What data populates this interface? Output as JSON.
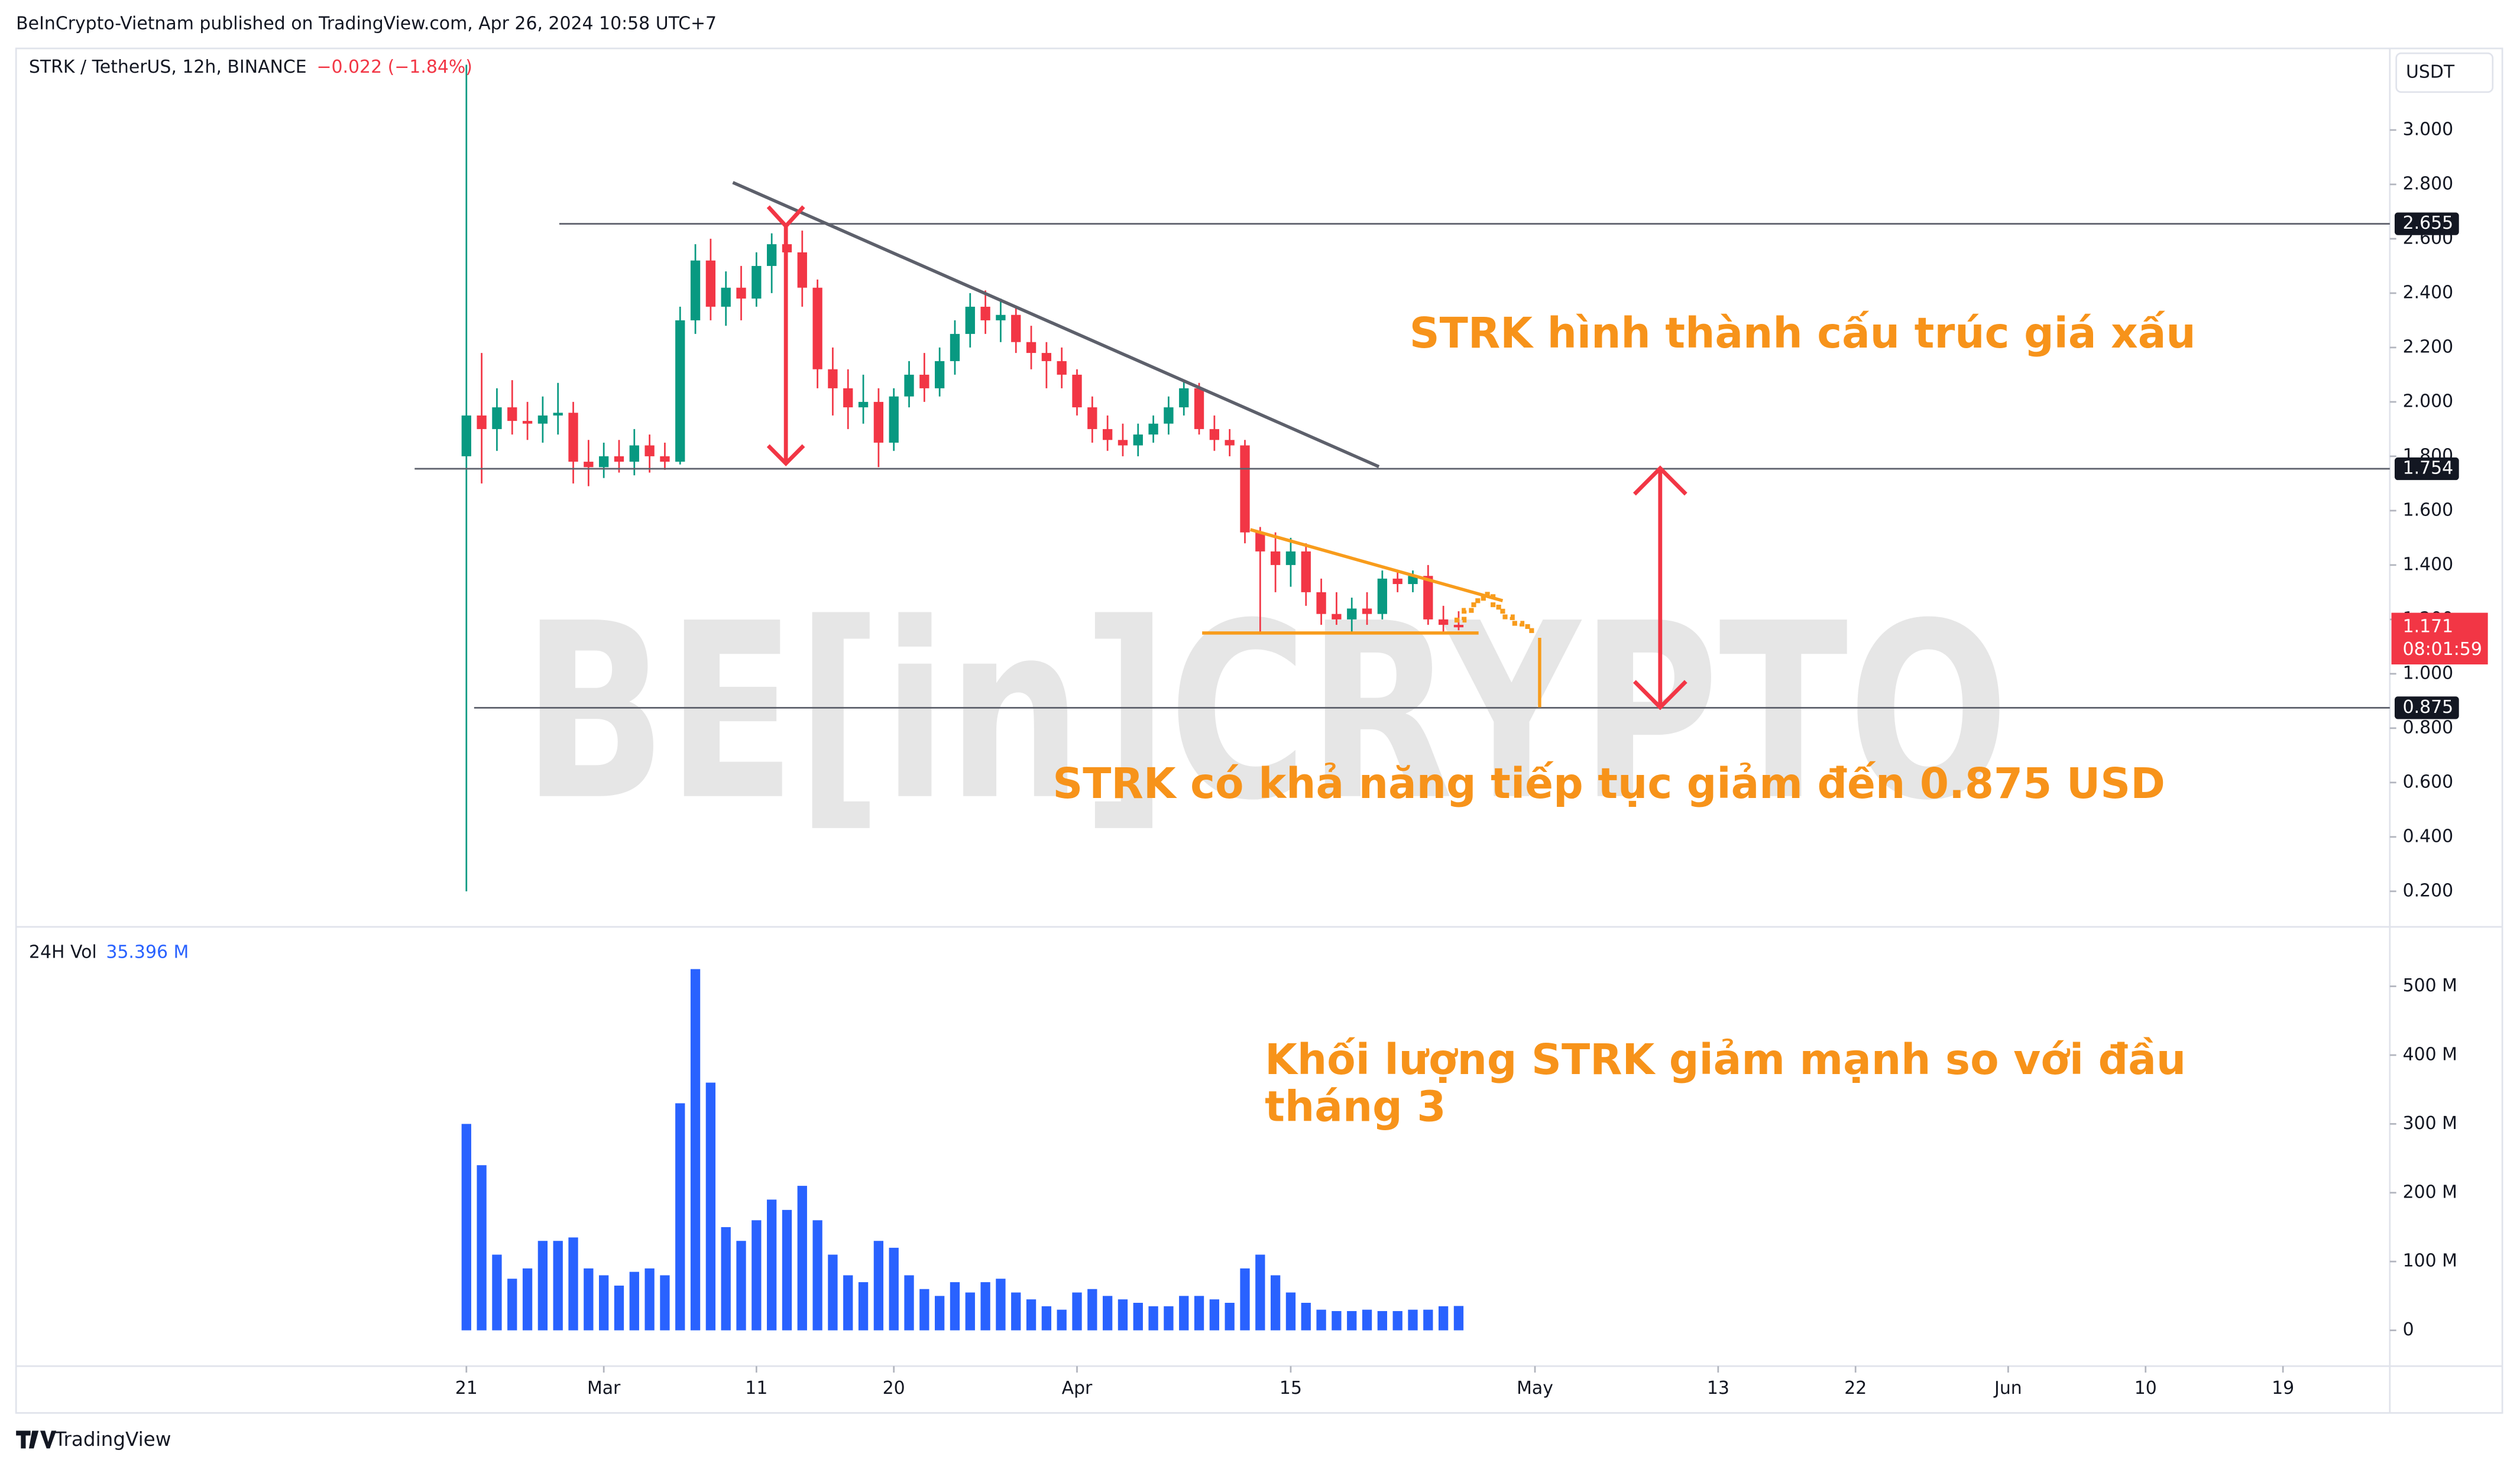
{
  "header": {
    "publisher": "BeInCrypto-Vietnam published on TradingView.com, Apr 26, 2024 10:58 UTC+7",
    "brand": "TradingView"
  },
  "chart_data": [
    {
      "type": "candlestick",
      "title": "STRK / TetherUS, 12h, BINANCE",
      "change": "−0.022 (−1.84%)",
      "currency": "USDT",
      "watermark": "BE[in]CRYPTO",
      "up_color": "#089981",
      "down_color": "#f23645",
      "grid": false,
      "x": [
        0,
        1,
        2,
        3,
        4,
        5,
        6,
        7,
        8,
        9,
        10,
        11,
        12,
        13,
        14,
        15,
        16,
        17,
        18,
        19,
        20,
        21,
        22,
        23,
        24,
        25,
        26,
        27,
        28,
        29,
        30,
        31,
        32,
        33,
        34,
        35,
        36,
        37,
        38,
        39,
        40,
        41,
        42,
        43,
        44,
        45,
        46,
        47,
        48,
        49,
        50,
        51,
        52,
        53,
        54,
        55,
        56,
        57,
        58,
        59,
        60,
        61,
        62,
        63,
        64,
        65
      ],
      "open": [
        1.8,
        1.95,
        1.9,
        1.98,
        1.93,
        1.92,
        1.95,
        1.96,
        1.78,
        1.76,
        1.8,
        1.78,
        1.84,
        1.8,
        1.78,
        2.3,
        2.52,
        2.35,
        2.42,
        2.38,
        2.5,
        2.58,
        2.55,
        2.42,
        2.12,
        2.05,
        1.98,
        2.0,
        1.85,
        2.02,
        2.1,
        2.05,
        2.15,
        2.25,
        2.35,
        2.3,
        2.32,
        2.22,
        2.18,
        2.15,
        2.1,
        1.98,
        1.9,
        1.86,
        1.84,
        1.88,
        1.92,
        1.98,
        2.05,
        1.9,
        1.86,
        1.84,
        1.52,
        1.45,
        1.4,
        1.45,
        1.3,
        1.22,
        1.2,
        1.24,
        1.22,
        1.35,
        1.33,
        1.36,
        1.2,
        1.18
      ],
      "high": [
        3.24,
        2.18,
        2.05,
        2.08,
        2.0,
        2.02,
        2.07,
        2.0,
        1.86,
        1.85,
        1.86,
        1.9,
        1.88,
        1.85,
        2.35,
        2.58,
        2.6,
        2.48,
        2.5,
        2.55,
        2.62,
        2.655,
        2.63,
        2.45,
        2.2,
        2.12,
        2.1,
        2.05,
        2.05,
        2.15,
        2.18,
        2.2,
        2.3,
        2.4,
        2.41,
        2.38,
        2.35,
        2.28,
        2.22,
        2.2,
        2.12,
        2.02,
        1.95,
        1.92,
        1.92,
        1.95,
        2.02,
        2.08,
        2.07,
        1.95,
        1.9,
        1.86,
        1.54,
        1.52,
        1.5,
        1.48,
        1.35,
        1.3,
        1.28,
        1.3,
        1.38,
        1.38,
        1.38,
        1.4,
        1.25,
        1.23
      ],
      "low": [
        0.2,
        1.7,
        1.82,
        1.88,
        1.86,
        1.85,
        1.88,
        1.7,
        1.69,
        1.72,
        1.74,
        1.73,
        1.74,
        1.75,
        1.77,
        2.25,
        2.3,
        2.28,
        2.3,
        2.35,
        2.4,
        2.45,
        2.35,
        2.05,
        1.95,
        1.9,
        1.92,
        1.76,
        1.82,
        1.98,
        2.0,
        2.02,
        2.1,
        2.2,
        2.25,
        2.22,
        2.18,
        2.12,
        2.05,
        2.05,
        1.95,
        1.85,
        1.82,
        1.8,
        1.8,
        1.85,
        1.88,
        1.95,
        1.88,
        1.82,
        1.8,
        1.48,
        1.15,
        1.3,
        1.32,
        1.25,
        1.18,
        1.18,
        1.15,
        1.18,
        1.2,
        1.3,
        1.3,
        1.18,
        1.15,
        1.16
      ],
      "close": [
        1.95,
        1.9,
        1.98,
        1.93,
        1.92,
        1.95,
        1.96,
        1.78,
        1.76,
        1.8,
        1.78,
        1.84,
        1.8,
        1.78,
        2.3,
        2.52,
        2.35,
        2.42,
        2.38,
        2.5,
        2.58,
        2.55,
        2.42,
        2.12,
        2.05,
        1.98,
        2.0,
        1.85,
        2.02,
        2.1,
        2.05,
        2.15,
        2.25,
        2.35,
        2.3,
        2.32,
        2.22,
        2.18,
        2.15,
        2.1,
        1.98,
        1.9,
        1.86,
        1.84,
        1.88,
        1.92,
        1.98,
        2.05,
        1.9,
        1.86,
        1.84,
        1.52,
        1.45,
        1.4,
        1.45,
        1.3,
        1.22,
        1.2,
        1.24,
        1.22,
        1.35,
        1.33,
        1.36,
        1.2,
        1.18,
        1.171
      ],
      "xlim": [
        -29.5,
        126
      ],
      "xticks": [
        {
          "value": 0,
          "label": "21"
        },
        {
          "value": 9,
          "label": "Mar"
        },
        {
          "value": 19,
          "label": "11"
        },
        {
          "value": 28,
          "label": "20"
        },
        {
          "value": 40,
          "label": "Apr"
        },
        {
          "value": 54,
          "label": "15"
        },
        {
          "value": 70,
          "label": "May"
        },
        {
          "value": 82,
          "label": "13"
        },
        {
          "value": 91,
          "label": "22"
        },
        {
          "value": 101,
          "label": "Jun"
        },
        {
          "value": 110,
          "label": "10"
        },
        {
          "value": 119,
          "label": "19"
        }
      ],
      "ylim": [
        0.075,
        3.3
      ],
      "yticks": [
        {
          "value": 0.2,
          "label": "0.200"
        },
        {
          "value": 0.4,
          "label": "0.400"
        },
        {
          "value": 0.6,
          "label": "0.600"
        },
        {
          "value": 0.8,
          "label": "0.800"
        },
        {
          "value": 1.0,
          "label": "1.000"
        },
        {
          "value": 1.2,
          "label": "1.200"
        },
        {
          "value": 1.4,
          "label": "1.400"
        },
        {
          "value": 1.6,
          "label": "1.600"
        },
        {
          "value": 1.8,
          "label": "1.800"
        },
        {
          "value": 2.0,
          "label": "2.000"
        },
        {
          "value": 2.2,
          "label": "2.200"
        },
        {
          "value": 2.4,
          "label": "2.400"
        },
        {
          "value": 2.6,
          "label": "2.600"
        },
        {
          "value": 2.8,
          "label": "2.800"
        },
        {
          "value": 3.0,
          "label": "3.000"
        }
      ],
      "price_lines": [
        {
          "value": 2.655
        },
        {
          "value": 1.754
        },
        {
          "value": 0.875
        }
      ],
      "last_price": {
        "value": 1.171,
        "countdown": "08:01:59",
        "color": "#f23645"
      },
      "annotations": [
        "STRK hình thành cấu trúc giá xấu",
        "STRK có khả năng tiếp tục giảm đến 0.875 USD"
      ]
    },
    {
      "type": "bar",
      "title": "24H Vol",
      "color": "#2962ff",
      "last": 35.396,
      "last_label": "35.396 M",
      "values": [
        300,
        240,
        110,
        75,
        90,
        130,
        130,
        135,
        90,
        80,
        65,
        85,
        90,
        80,
        330,
        525,
        360,
        150,
        130,
        160,
        190,
        175,
        210,
        160,
        110,
        80,
        70,
        130,
        120,
        80,
        60,
        50,
        70,
        55,
        70,
        75,
        55,
        45,
        35,
        30,
        55,
        60,
        50,
        45,
        40,
        35,
        35,
        50,
        50,
        45,
        40,
        90,
        110,
        80,
        55,
        40,
        30,
        28,
        28,
        30,
        28,
        28,
        30,
        30,
        35,
        35.396
      ],
      "ylim": [
        -52,
        584
      ],
      "yticks": [
        0,
        {
          "value": 100,
          "label": "100 M"
        },
        {
          "value": 200,
          "label": "200 M"
        },
        {
          "value": 300,
          "label": "300 M"
        },
        {
          "value": 400,
          "label": "400 M"
        },
        {
          "value": 500,
          "label": "500 M"
        }
      ],
      "annotation": [
        "Khối lượng STRK giảm mạnh so với đầu",
        "tháng 3"
      ]
    }
  ]
}
